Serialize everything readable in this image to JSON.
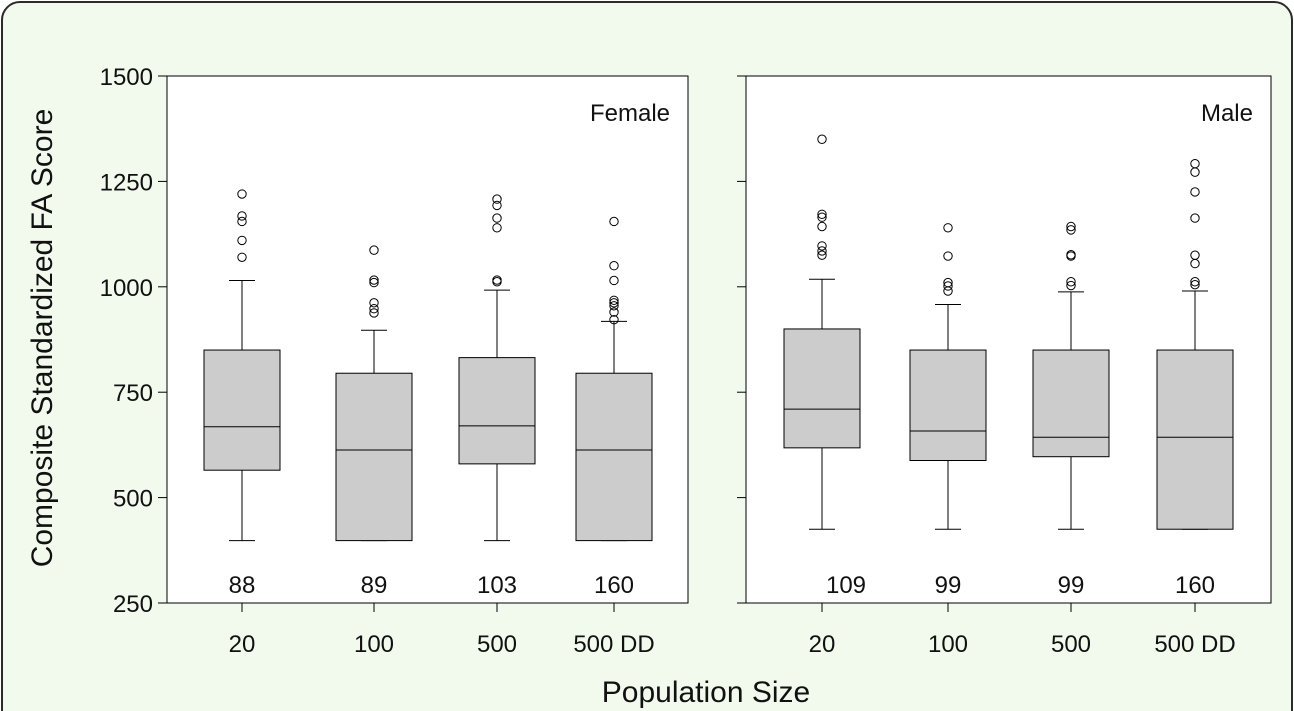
{
  "colors": {
    "frame_background": "#f2faee",
    "frame_border": "#2b2b2b",
    "box_fill": "#cccccc",
    "line": "#000000"
  },
  "chart_data": {
    "type": "box",
    "ylabel": "Composite Standardized FA Score",
    "xlabel": "Population Size",
    "ylim": [
      250,
      1500
    ],
    "yticks": [
      250,
      500,
      750,
      1000,
      1250,
      1500
    ],
    "categories": [
      "20",
      "100",
      "500",
      "500 DD"
    ],
    "panels": [
      {
        "label": "Female",
        "boxes": [
          {
            "category": "20",
            "n": "88",
            "whisker_low": 398,
            "q1": 565,
            "median": 668,
            "q3": 850,
            "whisker_high": 1015,
            "outliers": [
              1070,
              1110,
              1155,
              1168,
              1220
            ]
          },
          {
            "category": "100",
            "n": "89",
            "whisker_low": 398,
            "q1": 398,
            "median": 613,
            "q3": 795,
            "whisker_high": 897,
            "outliers": [
              938,
              948,
              962,
              1010,
              1016,
              1087
            ]
          },
          {
            "category": "500",
            "n": "103",
            "whisker_low": 398,
            "q1": 580,
            "median": 670,
            "q3": 832,
            "whisker_high": 992,
            "outliers": [
              1012,
              1016,
              1140,
              1163,
              1193,
              1208
            ]
          },
          {
            "category": "500 DD",
            "n": "160",
            "whisker_low": 398,
            "q1": 398,
            "median": 613,
            "q3": 795,
            "whisker_high": 918,
            "outliers": [
              922,
              940,
              955,
              962,
              968,
              1015,
              1050,
              1155
            ]
          }
        ]
      },
      {
        "label": "Male",
        "boxes": [
          {
            "category": "20",
            "n": "109",
            "whisker_low": 425,
            "q1": 618,
            "median": 710,
            "q3": 900,
            "whisker_high": 1018,
            "outliers": [
              1075,
              1085,
              1097,
              1143,
              1165,
              1172,
              1350
            ]
          },
          {
            "category": "100",
            "n": "99",
            "whisker_low": 425,
            "q1": 588,
            "median": 658,
            "q3": 850,
            "whisker_high": 958,
            "outliers": [
              990,
              1002,
              1010,
              1073,
              1140
            ]
          },
          {
            "category": "500",
            "n": "99",
            "whisker_low": 425,
            "q1": 597,
            "median": 643,
            "q3": 850,
            "whisker_high": 988,
            "outliers": [
              1003,
              1012,
              1073,
              1076,
              1135,
              1143
            ]
          },
          {
            "category": "500 DD",
            "n": "160",
            "whisker_low": 425,
            "q1": 425,
            "median": 643,
            "q3": 850,
            "whisker_high": 990,
            "outliers": [
              1005,
              1012,
              1055,
              1075,
              1163,
              1225,
              1272,
              1292
            ]
          }
        ]
      }
    ],
    "grid": false
  }
}
